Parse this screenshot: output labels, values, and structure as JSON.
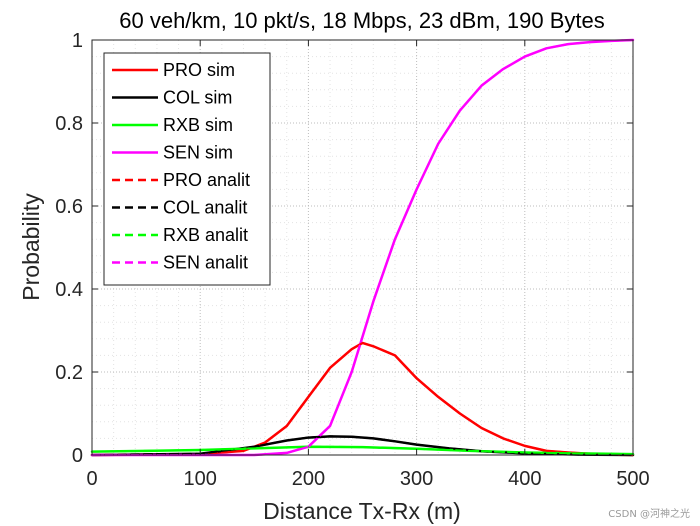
{
  "chart_data": {
    "type": "line",
    "title": "60 veh/km, 10 pkt/s, 18 Mbps, 23 dBm, 190 Bytes",
    "xlabel": "Distance Tx-Rx (m)",
    "ylabel": "Probability",
    "xlim": [
      0,
      500
    ],
    "ylim": [
      0,
      1
    ],
    "xticks": [
      0,
      100,
      200,
      300,
      400,
      500
    ],
    "yticks": [
      0,
      0.2,
      0.4,
      0.6,
      0.8,
      1
    ],
    "xtick_labels": [
      "0",
      "100",
      "200",
      "300",
      "400",
      "500"
    ],
    "ytick_labels": [
      "0",
      "0.2",
      "0.4",
      "0.6",
      "0.8",
      "1"
    ],
    "grid": "major and minor, dotted",
    "legend_position": "top-left",
    "series": [
      {
        "name": "PRO sim",
        "color": "#ff0000",
        "style": "solid",
        "x": [
          0,
          100,
          140,
          160,
          180,
          200,
          220,
          240,
          250,
          260,
          280,
          300,
          320,
          340,
          360,
          380,
          400,
          420,
          440,
          460,
          480,
          500
        ],
        "y": [
          0,
          0.002,
          0.01,
          0.03,
          0.07,
          0.14,
          0.21,
          0.255,
          0.27,
          0.262,
          0.24,
          0.185,
          0.14,
          0.1,
          0.065,
          0.04,
          0.022,
          0.01,
          0.006,
          0.003,
          0.001,
          0
        ]
      },
      {
        "name": "COL sim",
        "color": "#000000",
        "style": "solid",
        "x": [
          0,
          100,
          150,
          180,
          200,
          220,
          240,
          260,
          280,
          300,
          330,
          360,
          400,
          450,
          500
        ],
        "y": [
          0,
          0.003,
          0.02,
          0.035,
          0.042,
          0.045,
          0.044,
          0.04,
          0.033,
          0.025,
          0.016,
          0.009,
          0.004,
          0.001,
          0
        ]
      },
      {
        "name": "RXB sim",
        "color": "#00ff00",
        "style": "solid",
        "x": [
          0,
          50,
          100,
          150,
          200,
          250,
          300,
          350,
          400,
          450,
          500
        ],
        "y": [
          0.008,
          0.01,
          0.012,
          0.016,
          0.02,
          0.019,
          0.015,
          0.01,
          0.006,
          0.004,
          0.002
        ]
      },
      {
        "name": "SEN sim",
        "color": "#ff00ff",
        "style": "solid",
        "x": [
          0,
          150,
          180,
          200,
          220,
          240,
          260,
          280,
          300,
          320,
          340,
          360,
          380,
          400,
          420,
          440,
          460,
          480,
          500
        ],
        "y": [
          0,
          0,
          0.005,
          0.02,
          0.07,
          0.2,
          0.37,
          0.52,
          0.64,
          0.75,
          0.83,
          0.89,
          0.93,
          0.96,
          0.98,
          0.99,
          0.995,
          0.998,
          1
        ]
      },
      {
        "name": "PRO analit",
        "color": "#ff0000",
        "style": "dashed",
        "x": [
          0,
          100,
          140,
          160,
          180,
          200,
          220,
          240,
          250,
          260,
          280,
          300,
          320,
          340,
          360,
          380,
          400,
          420,
          440,
          460,
          480,
          500
        ],
        "y": [
          0,
          0.002,
          0.01,
          0.03,
          0.07,
          0.14,
          0.21,
          0.255,
          0.27,
          0.262,
          0.24,
          0.185,
          0.14,
          0.1,
          0.065,
          0.04,
          0.022,
          0.01,
          0.006,
          0.003,
          0.001,
          0
        ]
      },
      {
        "name": "COL analit",
        "color": "#000000",
        "style": "dashed",
        "x": [
          0,
          100,
          150,
          180,
          200,
          220,
          240,
          260,
          280,
          300,
          330,
          360,
          400,
          450,
          500
        ],
        "y": [
          0,
          0.003,
          0.02,
          0.035,
          0.042,
          0.045,
          0.044,
          0.04,
          0.033,
          0.025,
          0.016,
          0.009,
          0.004,
          0.001,
          0
        ]
      },
      {
        "name": "RXB analit",
        "color": "#00ff00",
        "style": "dashed",
        "x": [
          0,
          50,
          100,
          150,
          200,
          250,
          300,
          350,
          400,
          450,
          500
        ],
        "y": [
          0.008,
          0.01,
          0.012,
          0.016,
          0.02,
          0.019,
          0.015,
          0.01,
          0.006,
          0.004,
          0.002
        ]
      },
      {
        "name": "SEN analit",
        "color": "#ff00ff",
        "style": "dashed",
        "x": [
          0,
          150,
          180,
          200,
          220,
          240,
          260,
          280,
          300,
          320,
          340,
          360,
          380,
          400,
          420,
          440,
          460,
          480,
          500
        ],
        "y": [
          0,
          0,
          0.005,
          0.02,
          0.07,
          0.2,
          0.37,
          0.52,
          0.64,
          0.75,
          0.83,
          0.89,
          0.93,
          0.96,
          0.98,
          0.99,
          0.995,
          0.998,
          1
        ]
      }
    ]
  },
  "watermark": "CSDN @河神之光"
}
